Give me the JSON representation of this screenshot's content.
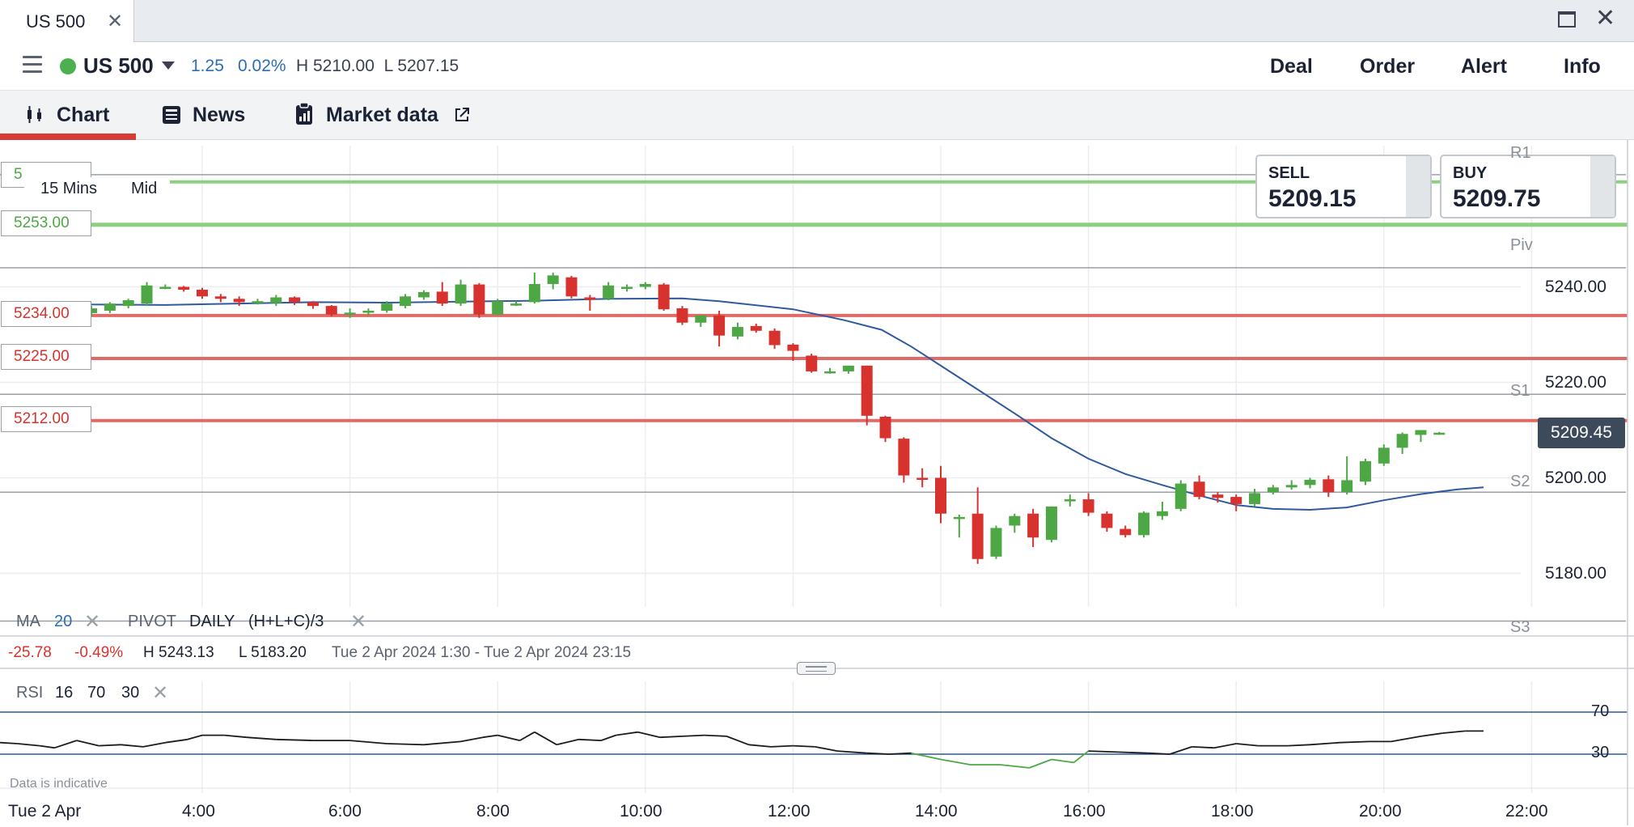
{
  "window": {
    "tab_title": "US 500",
    "close_glyph": "✕",
    "maximize_icon": "maximize-icon",
    "close_icon": "close-icon"
  },
  "header": {
    "instrument": "US 500",
    "status": "market-open",
    "change_abs": "1.25",
    "change_pct": "0.02%",
    "high_low": "H 5210.00  L 5207.15",
    "actions": [
      "Deal",
      "Order",
      "Alert",
      "Info"
    ]
  },
  "subtabs": [
    {
      "label": "Chart",
      "icon": "candlestick-icon",
      "active": true
    },
    {
      "label": "News",
      "icon": "newspaper-icon"
    },
    {
      "label": "Market data",
      "icon": "clipboard-icon",
      "external_icon": "external-link-icon"
    }
  ],
  "quotes": {
    "sell_label": "SELL",
    "sell_value": "5209.15",
    "buy_label": "BUY",
    "buy_value": "5209.75"
  },
  "timeframe": {
    "interval": "15 Mins",
    "price_type": "Mid"
  },
  "levels": {
    "green_top_partial": "5",
    "green": "5253.00",
    "red_1": "5234.00",
    "red_2": "5225.00",
    "red_3": "5212.00"
  },
  "pivots": [
    "R1",
    "Piv",
    "S1",
    "S2",
    "S3"
  ],
  "y_axis": [
    "5240.00",
    "5220.00",
    "5200.00",
    "5180.00"
  ],
  "last_price": "5209.45",
  "indicators": {
    "ma_label": "MA",
    "ma_period": "20",
    "pivot_label": "PIVOT",
    "pivot_period": "DAILY",
    "pivot_formula": "(H+L+C)/3",
    "close_glyph": "✕"
  },
  "summary": {
    "change_abs": "-25.78",
    "change_pct": "-0.49%",
    "high": "H 5243.13",
    "low": "L 5183.20",
    "range": "Tue 2 Apr 2024 1:30 - Tue 2 Apr 2024 23:15"
  },
  "rsi": {
    "label": "RSI",
    "period": "16",
    "upper": "70",
    "lower": "30",
    "axis_upper": "70",
    "axis_lower": "30"
  },
  "watermark": "Data is indicative",
  "x_axis": {
    "date": "Tue 2 Apr",
    "times": [
      "4:00",
      "6:00",
      "8:00",
      "10:00",
      "12:00",
      "14:00",
      "16:00",
      "18:00",
      "20:00",
      "22:00"
    ]
  },
  "colors": {
    "up": "#4ea745",
    "down": "#d8322e",
    "level_green": "#8ccf7e",
    "level_red": "#e06a66",
    "ma": "#2f5a9e",
    "rsi": "#1c1c1c",
    "rsi_oversold": "#4ea745"
  },
  "chart_data": {
    "type": "candlestick",
    "title": "",
    "interval": "15 Mins",
    "xlabel": "",
    "ylabel": "",
    "ylim": [
      5165,
      5267
    ],
    "x_range": [
      "1:30",
      "23:15"
    ],
    "candles": [
      {
        "t": "2:00",
        "o": 5236.0,
        "h": 5237.0,
        "l": 5234.5,
        "c": 5235.0
      },
      {
        "t": "2:15",
        "o": 5235.0,
        "h": 5235.8,
        "l": 5234.0,
        "c": 5234.5
      },
      {
        "t": "2:30",
        "o": 5234.5,
        "h": 5236.0,
        "l": 5233.8,
        "c": 5235.5
      },
      {
        "t": "2:45",
        "o": 5235.0,
        "h": 5236.8,
        "l": 5234.5,
        "c": 5236.5
      },
      {
        "t": "3:00",
        "o": 5236.0,
        "h": 5237.5,
        "l": 5235.5,
        "c": 5237.2
      },
      {
        "t": "3:15",
        "o": 5236.5,
        "h": 5241.0,
        "l": 5236.0,
        "c": 5240.3
      },
      {
        "t": "3:30",
        "o": 5240.0,
        "h": 5240.5,
        "l": 5239.5,
        "c": 5240.0
      },
      {
        "t": "3:45",
        "o": 5240.0,
        "h": 5240.2,
        "l": 5239.0,
        "c": 5239.4
      },
      {
        "t": "4:00",
        "o": 5239.4,
        "h": 5239.8,
        "l": 5237.5,
        "c": 5238.0
      },
      {
        "t": "4:15",
        "o": 5238.0,
        "h": 5238.5,
        "l": 5236.8,
        "c": 5237.5
      },
      {
        "t": "4:30",
        "o": 5237.5,
        "h": 5238.0,
        "l": 5236.0,
        "c": 5236.8
      },
      {
        "t": "4:45",
        "o": 5237.0,
        "h": 5237.5,
        "l": 5236.3,
        "c": 5237.0
      },
      {
        "t": "5:00",
        "o": 5236.6,
        "h": 5238.3,
        "l": 5236.0,
        "c": 5237.8
      },
      {
        "t": "5:15",
        "o": 5237.8,
        "h": 5238.0,
        "l": 5236.2,
        "c": 5236.8
      },
      {
        "t": "5:30",
        "o": 5236.8,
        "h": 5237.0,
        "l": 5235.4,
        "c": 5236.0
      },
      {
        "t": "5:45",
        "o": 5236.0,
        "h": 5236.2,
        "l": 5233.8,
        "c": 5234.2
      },
      {
        "t": "6:00",
        "o": 5234.3,
        "h": 5235.5,
        "l": 5233.5,
        "c": 5234.6
      },
      {
        "t": "6:15",
        "o": 5234.6,
        "h": 5235.5,
        "l": 5234.0,
        "c": 5235.0
      },
      {
        "t": "6:30",
        "o": 5235.0,
        "h": 5237.0,
        "l": 5234.6,
        "c": 5236.5
      },
      {
        "t": "6:45",
        "o": 5236.0,
        "h": 5238.5,
        "l": 5235.5,
        "c": 5238.0
      },
      {
        "t": "7:00",
        "o": 5237.8,
        "h": 5239.3,
        "l": 5237.3,
        "c": 5238.9
      },
      {
        "t": "7:15",
        "o": 5239.0,
        "h": 5241.0,
        "l": 5236.0,
        "c": 5236.5
      },
      {
        "t": "7:30",
        "o": 5236.5,
        "h": 5241.5,
        "l": 5236.0,
        "c": 5240.5
      },
      {
        "t": "7:45",
        "o": 5240.5,
        "h": 5240.8,
        "l": 5233.5,
        "c": 5234.2
      },
      {
        "t": "8:00",
        "o": 5234.2,
        "h": 5237.5,
        "l": 5234.0,
        "c": 5237.0
      },
      {
        "t": "8:15",
        "o": 5236.5,
        "h": 5237.0,
        "l": 5236.0,
        "c": 5236.5
      },
      {
        "t": "8:30",
        "o": 5236.8,
        "h": 5243.0,
        "l": 5236.5,
        "c": 5240.6
      },
      {
        "t": "8:45",
        "o": 5240.6,
        "h": 5243.0,
        "l": 5239.5,
        "c": 5242.4
      },
      {
        "t": "9:00",
        "o": 5242.0,
        "h": 5242.3,
        "l": 5237.6,
        "c": 5238.0
      },
      {
        "t": "9:15",
        "o": 5237.8,
        "h": 5238.3,
        "l": 5235.0,
        "c": 5237.3
      },
      {
        "t": "9:30",
        "o": 5237.5,
        "h": 5241.0,
        "l": 5237.2,
        "c": 5240.3
      },
      {
        "t": "9:45",
        "o": 5239.8,
        "h": 5240.5,
        "l": 5239.0,
        "c": 5240.0
      },
      {
        "t": "10:00",
        "o": 5240.0,
        "h": 5241.0,
        "l": 5239.5,
        "c": 5240.6
      },
      {
        "t": "10:15",
        "o": 5240.5,
        "h": 5240.8,
        "l": 5235.0,
        "c": 5235.3
      },
      {
        "t": "10:30",
        "o": 5235.5,
        "h": 5236.0,
        "l": 5232.0,
        "c": 5232.5
      },
      {
        "t": "10:45",
        "o": 5232.5,
        "h": 5234.0,
        "l": 5231.6,
        "c": 5234.0
      },
      {
        "t": "11:00",
        "o": 5234.0,
        "h": 5235.0,
        "l": 5227.5,
        "c": 5229.8
      },
      {
        "t": "11:15",
        "o": 5229.6,
        "h": 5232.5,
        "l": 5229.0,
        "c": 5231.6
      },
      {
        "t": "11:30",
        "o": 5231.8,
        "h": 5232.3,
        "l": 5230.4,
        "c": 5230.8
      },
      {
        "t": "11:45",
        "o": 5230.8,
        "h": 5231.3,
        "l": 5227.0,
        "c": 5227.8
      },
      {
        "t": "12:00",
        "o": 5227.9,
        "h": 5228.2,
        "l": 5224.5,
        "c": 5226.6
      },
      {
        "t": "12:15",
        "o": 5225.6,
        "h": 5226.0,
        "l": 5222.0,
        "c": 5222.3
      },
      {
        "t": "12:30",
        "o": 5222.2,
        "h": 5223.0,
        "l": 5221.8,
        "c": 5222.3
      },
      {
        "t": "12:45",
        "o": 5222.3,
        "h": 5223.5,
        "l": 5221.8,
        "c": 5223.5
      },
      {
        "t": "13:00",
        "o": 5223.5,
        "h": 5223.5,
        "l": 5211.0,
        "c": 5213.0
      },
      {
        "t": "13:15",
        "o": 5212.8,
        "h": 5213.0,
        "l": 5207.5,
        "c": 5208.3
      },
      {
        "t": "13:30",
        "o": 5208.2,
        "h": 5208.5,
        "l": 5199.0,
        "c": 5200.5
      },
      {
        "t": "13:45",
        "o": 5200.0,
        "h": 5202.0,
        "l": 5198.0,
        "c": 5199.8
      },
      {
        "t": "14:00",
        "o": 5200.0,
        "h": 5202.5,
        "l": 5190.5,
        "c": 5192.5
      },
      {
        "t": "14:15",
        "o": 5191.8,
        "h": 5192.3,
        "l": 5187.5,
        "c": 5191.8
      },
      {
        "t": "14:30",
        "o": 5192.5,
        "h": 5198.0,
        "l": 5182.0,
        "c": 5183.0
      },
      {
        "t": "14:45",
        "o": 5183.5,
        "h": 5190.0,
        "l": 5183.0,
        "c": 5189.5
      },
      {
        "t": "15:00",
        "o": 5190.0,
        "h": 5192.5,
        "l": 5188.5,
        "c": 5192.0
      },
      {
        "t": "15:15",
        "o": 5192.5,
        "h": 5193.5,
        "l": 5185.5,
        "c": 5187.5
      },
      {
        "t": "15:30",
        "o": 5187.0,
        "h": 5194.0,
        "l": 5186.5,
        "c": 5194.0
      },
      {
        "t": "15:45",
        "o": 5195.5,
        "h": 5196.5,
        "l": 5194.0,
        "c": 5195.5
      },
      {
        "t": "16:00",
        "o": 5195.5,
        "h": 5196.8,
        "l": 5192.0,
        "c": 5192.7
      },
      {
        "t": "16:15",
        "o": 5192.5,
        "h": 5193.0,
        "l": 5188.7,
        "c": 5189.5
      },
      {
        "t": "16:30",
        "o": 5189.3,
        "h": 5190.0,
        "l": 5187.5,
        "c": 5188.0
      },
      {
        "t": "16:45",
        "o": 5188.0,
        "h": 5193.0,
        "l": 5187.5,
        "c": 5192.7
      },
      {
        "t": "17:00",
        "o": 5192.0,
        "h": 5195.0,
        "l": 5191.2,
        "c": 5193.0
      },
      {
        "t": "17:15",
        "o": 5193.5,
        "h": 5199.5,
        "l": 5193.0,
        "c": 5198.8
      },
      {
        "t": "17:30",
        "o": 5199.2,
        "h": 5200.5,
        "l": 5195.5,
        "c": 5196.0
      },
      {
        "t": "17:45",
        "o": 5196.5,
        "h": 5197.0,
        "l": 5194.8,
        "c": 5195.8
      },
      {
        "t": "18:00",
        "o": 5196.0,
        "h": 5196.5,
        "l": 5193.0,
        "c": 5194.5
      },
      {
        "t": "18:15",
        "o": 5194.5,
        "h": 5197.7,
        "l": 5194.0,
        "c": 5196.8
      },
      {
        "t": "18:30",
        "o": 5197.0,
        "h": 5198.5,
        "l": 5196.5,
        "c": 5198.0
      },
      {
        "t": "18:45",
        "o": 5198.0,
        "h": 5199.5,
        "l": 5197.5,
        "c": 5198.5
      },
      {
        "t": "19:00",
        "o": 5198.5,
        "h": 5200.0,
        "l": 5197.8,
        "c": 5199.6
      },
      {
        "t": "19:15",
        "o": 5199.7,
        "h": 5200.5,
        "l": 5196.0,
        "c": 5197.0
      },
      {
        "t": "19:30",
        "o": 5197.0,
        "h": 5204.5,
        "l": 5196.5,
        "c": 5199.5
      },
      {
        "t": "19:45",
        "o": 5199.2,
        "h": 5204.0,
        "l": 5198.5,
        "c": 5203.5
      },
      {
        "t": "20:00",
        "o": 5203.0,
        "h": 5207.0,
        "l": 5202.5,
        "c": 5206.3
      },
      {
        "t": "20:15",
        "o": 5206.3,
        "h": 5209.5,
        "l": 5205.0,
        "c": 5209.2
      },
      {
        "t": "20:30",
        "o": 5209.0,
        "h": 5210.0,
        "l": 5207.5,
        "c": 5210.0
      },
      {
        "t": "20:45",
        "o": 5209.3,
        "h": 5209.6,
        "l": 5209.0,
        "c": 5209.45
      }
    ],
    "ma": {
      "name": "MA 20",
      "points": [
        [
          1.6,
          5236.8
        ],
        [
          2.5,
          5236.3
        ],
        [
          3.5,
          5236.2
        ],
        [
          4.5,
          5236.5
        ],
        [
          5.5,
          5236.8
        ],
        [
          6.5,
          5236.7
        ],
        [
          7.5,
          5236.9
        ],
        [
          8.5,
          5237.1
        ],
        [
          9.5,
          5237.5
        ],
        [
          10.5,
          5237.6
        ],
        [
          11.0,
          5237.0
        ],
        [
          12.0,
          5235.3
        ],
        [
          12.7,
          5233.0
        ],
        [
          13.2,
          5231.0
        ],
        [
          13.6,
          5227.5
        ],
        [
          14.0,
          5223.5
        ],
        [
          14.5,
          5218.5
        ],
        [
          15.0,
          5213.5
        ],
        [
          15.5,
          5208.3
        ],
        [
          16.0,
          5204.0
        ],
        [
          16.5,
          5200.8
        ],
        [
          17.0,
          5198.5
        ],
        [
          17.5,
          5196.3
        ],
        [
          18.0,
          5194.3
        ],
        [
          18.5,
          5193.5
        ],
        [
          19.0,
          5193.3
        ],
        [
          19.5,
          5193.8
        ],
        [
          20.0,
          5195.3
        ],
        [
          20.5,
          5196.6
        ],
        [
          21.0,
          5197.6
        ],
        [
          21.35,
          5198.0
        ]
      ]
    },
    "pivot_levels": {
      "R1": 5263.5,
      "Piv": 5244.0,
      "S1": 5217.5,
      "S2": 5197.0,
      "S3": 5170.0
    },
    "horizontal_levels": [
      5253.0,
      5234.0,
      5225.0,
      5212.0,
      5262.0
    ],
    "rsi": {
      "name": "RSI 16",
      "ylim": [
        0,
        100
      ],
      "overbought": 70,
      "oversold": 30,
      "points": [
        [
          1.5,
          40
        ],
        [
          1.8,
          38
        ],
        [
          2.0,
          36
        ],
        [
          2.3,
          43
        ],
        [
          2.6,
          38
        ],
        [
          2.9,
          39
        ],
        [
          3.2,
          37
        ],
        [
          3.5,
          41
        ],
        [
          3.8,
          44
        ],
        [
          4.0,
          48
        ],
        [
          4.3,
          48
        ],
        [
          4.6,
          46
        ],
        [
          5.0,
          44
        ],
        [
          5.5,
          43
        ],
        [
          6.0,
          43
        ],
        [
          6.5,
          40
        ],
        [
          7.0,
          39
        ],
        [
          7.5,
          42
        ],
        [
          7.8,
          46
        ],
        [
          8.0,
          48
        ],
        [
          8.3,
          43
        ],
        [
          8.5,
          51
        ],
        [
          8.8,
          39
        ],
        [
          9.1,
          44
        ],
        [
          9.4,
          43
        ],
        [
          9.6,
          48
        ],
        [
          9.9,
          51
        ],
        [
          10.2,
          46
        ],
        [
          10.5,
          47
        ],
        [
          10.8,
          48
        ],
        [
          11.1,
          47
        ],
        [
          11.4,
          39
        ],
        [
          11.7,
          37
        ],
        [
          12.0,
          38
        ],
        [
          12.3,
          37
        ],
        [
          12.6,
          33
        ],
        [
          13.0,
          31
        ],
        [
          13.3,
          30
        ],
        [
          13.6,
          31
        ],
        [
          14.0,
          25
        ],
        [
          14.4,
          20
        ],
        [
          14.8,
          20
        ],
        [
          15.2,
          17
        ],
        [
          15.5,
          25
        ],
        [
          15.8,
          22
        ],
        [
          16.0,
          33
        ],
        [
          16.4,
          32
        ],
        [
          16.8,
          31
        ],
        [
          17.1,
          30
        ],
        [
          17.4,
          37
        ],
        [
          17.7,
          36
        ],
        [
          18.0,
          40
        ],
        [
          18.3,
          38
        ],
        [
          18.7,
          38
        ],
        [
          19.0,
          39
        ],
        [
          19.4,
          41
        ],
        [
          19.8,
          42
        ],
        [
          20.1,
          42
        ],
        [
          20.5,
          47
        ],
        [
          20.8,
          50
        ],
        [
          21.1,
          52
        ],
        [
          21.35,
          52
        ]
      ]
    }
  }
}
